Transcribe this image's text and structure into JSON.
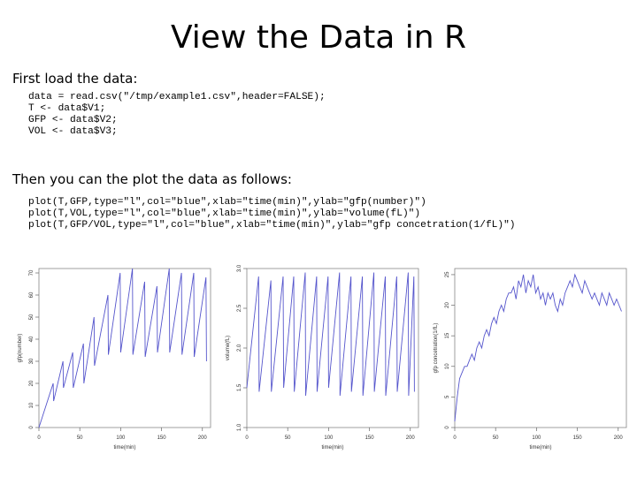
{
  "slide": {
    "title": "View the Data in R",
    "intro": "First load the data:",
    "load_code": [
      "data = read.csv(\"/tmp/example1.csv\",header=FALSE);",
      "T <- data$V1;",
      "GFP <- data$V2;",
      "VOL <- data$V3;"
    ],
    "plot_intro": "Then you can the plot the data as follows:",
    "plot_code": [
      "plot(T,GFP,type=\"l\",col=\"blue\",xlab=\"time(min)\",ylab=\"gfp(number)\")",
      "plot(T,VOL,type=\"l\",col=\"blue\",xlab=\"time(min)\",ylab=\"volume(fL)\")",
      "plot(T,GFP/VOL,type=\"l\",col=\"blue\",xlab=\"time(min)\",ylab=\"gfp concetration(1/fL)\")"
    ]
  },
  "colors": {
    "line": "#5555cc"
  },
  "chart_data": [
    {
      "type": "line",
      "xlabel": "time(min)",
      "ylabel": "gfp(number)",
      "xlim": [
        0,
        210
      ],
      "ylim": [
        0,
        72
      ],
      "xticks": [
        "0",
        "50",
        "100",
        "150",
        "200"
      ],
      "yticks": [
        "0",
        "10",
        "20",
        "30",
        "40",
        "50",
        "60",
        "70"
      ],
      "sawtooth": {
        "periods": [
          0,
          18,
          30,
          42,
          55,
          68,
          85,
          100,
          115,
          130,
          145,
          160,
          175,
          190,
          205
        ],
        "peaks": [
          20,
          30,
          34,
          38,
          50,
          60,
          70,
          72,
          66,
          64,
          72,
          70,
          70,
          68
        ],
        "troughs": [
          0,
          12,
          18,
          18,
          20,
          28,
          33,
          34,
          33,
          32,
          34,
          34,
          33,
          32,
          30
        ]
      }
    },
    {
      "type": "line",
      "xlabel": "time(min)",
      "ylabel": "volume(fL)",
      "xlim": [
        0,
        210
      ],
      "ylim": [
        1.0,
        3.0
      ],
      "xticks": [
        "0",
        "50",
        "100",
        "150",
        "200"
      ],
      "yticks": [
        "1.0",
        "1.5",
        "2.0",
        "2.5",
        "3.0"
      ],
      "sawtooth": {
        "periods": [
          0,
          15,
          30,
          45,
          58,
          72,
          86,
          100,
          114,
          128,
          142,
          156,
          170,
          184,
          198,
          205
        ],
        "peaks": [
          2.9,
          2.85,
          2.9,
          2.9,
          2.95,
          2.9,
          2.9,
          2.95,
          2.9,
          2.9,
          2.95,
          2.9,
          2.9,
          2.95,
          2.9
        ],
        "troughs": [
          1.5,
          1.45,
          1.45,
          1.5,
          1.45,
          1.4,
          1.45,
          1.5,
          1.4,
          1.45,
          1.4,
          1.45,
          1.4,
          1.45,
          1.4,
          1.45
        ]
      }
    },
    {
      "type": "line",
      "xlabel": "time(min)",
      "ylabel": "gfp concetration(1/fL)",
      "xlim": [
        0,
        210
      ],
      "ylim": [
        0,
        26
      ],
      "xticks": [
        "0",
        "50",
        "100",
        "150",
        "200"
      ],
      "yticks": [
        "0",
        "5",
        "10",
        "15",
        "20",
        "25"
      ],
      "x": [
        0,
        3,
        6,
        9,
        12,
        15,
        18,
        21,
        24,
        27,
        30,
        33,
        36,
        39,
        42,
        45,
        48,
        51,
        54,
        57,
        60,
        63,
        66,
        69,
        72,
        75,
        78,
        81,
        84,
        87,
        90,
        93,
        96,
        99,
        102,
        105,
        108,
        111,
        114,
        117,
        120,
        123,
        126,
        129,
        132,
        135,
        138,
        141,
        144,
        147,
        150,
        153,
        156,
        159,
        162,
        165,
        168,
        171,
        174,
        177,
        180,
        183,
        186,
        189,
        192,
        195,
        198,
        201,
        204
      ],
      "y": [
        1,
        5,
        8,
        9,
        10,
        10,
        11,
        12,
        11,
        13,
        14,
        13,
        15,
        16,
        15,
        17,
        18,
        17,
        19,
        20,
        19,
        21,
        22,
        22,
        23,
        21,
        24,
        23,
        25,
        22,
        24,
        23,
        25,
        22,
        23,
        21,
        22,
        20,
        22,
        21,
        22,
        20,
        19,
        21,
        20,
        22,
        23,
        24,
        23,
        25,
        24,
        23,
        22,
        24,
        23,
        22,
        21,
        22,
        21,
        20,
        22,
        21,
        20,
        22,
        21,
        20,
        21,
        20,
        19
      ]
    }
  ]
}
